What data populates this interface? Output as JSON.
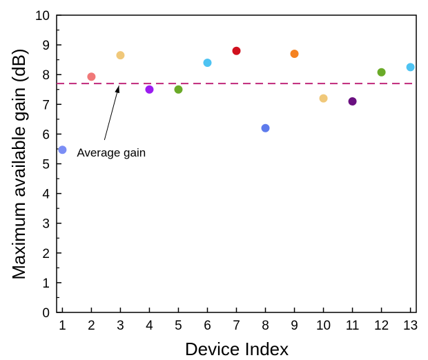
{
  "chart_data": {
    "type": "scatter",
    "xlabel": "Device Index",
    "ylabel": "Maximum available gain (dB)",
    "xlim": [
      0.8,
      13.2
    ],
    "ylim": [
      0,
      10
    ],
    "xticks": [
      1,
      2,
      3,
      4,
      5,
      6,
      7,
      8,
      9,
      10,
      11,
      12,
      13
    ],
    "yticks": [
      0,
      1,
      2,
      3,
      4,
      5,
      6,
      7,
      8,
      9,
      10
    ],
    "grid": false,
    "points": [
      {
        "x": 1,
        "y": 5.47,
        "color": "#7b8ef5"
      },
      {
        "x": 2,
        "y": 7.93,
        "color": "#f07878"
      },
      {
        "x": 3,
        "y": 8.65,
        "color": "#f0c87a"
      },
      {
        "x": 4,
        "y": 7.5,
        "color": "#9b1cf0"
      },
      {
        "x": 5,
        "y": 7.5,
        "color": "#6aaa28"
      },
      {
        "x": 6,
        "y": 8.4,
        "color": "#4ec3f2"
      },
      {
        "x": 7,
        "y": 8.8,
        "color": "#d0101e"
      },
      {
        "x": 8,
        "y": 6.2,
        "color": "#5e7bec"
      },
      {
        "x": 9,
        "y": 8.7,
        "color": "#f58220"
      },
      {
        "x": 10,
        "y": 7.2,
        "color": "#f0c87a"
      },
      {
        "x": 11,
        "y": 7.1,
        "color": "#6a1080"
      },
      {
        "x": 12,
        "y": 8.08,
        "color": "#6aaa28"
      },
      {
        "x": 13,
        "y": 8.25,
        "color": "#4ec3f2"
      }
    ],
    "reference_line": {
      "y": 7.7,
      "color": "#c0287a",
      "style": "dashed"
    },
    "annotations": [
      {
        "text": "Average gain",
        "arrow_from": [
          2.45,
          5.8
        ],
        "arrow_to": [
          2.95,
          7.7
        ]
      }
    ]
  }
}
